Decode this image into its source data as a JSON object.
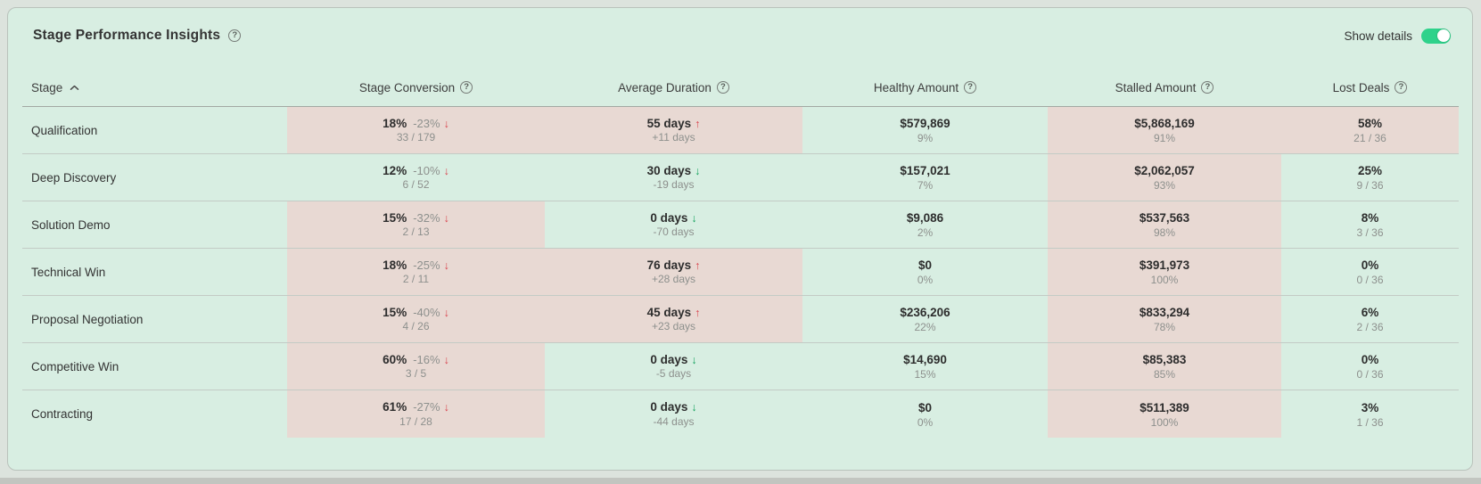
{
  "colors": {
    "card_background": "#d8eee2",
    "highlight_pink": "#e8d9d3",
    "outer_background": "#dce3dd",
    "toggle_green": "#2ed28b",
    "negative_red": "#d9434e",
    "positive_green": "#17a35f"
  },
  "icons": {
    "help_glyph": "?"
  },
  "header": {
    "title": "Stage Performance Insights",
    "show_details_label": "Show details",
    "show_details_on": true
  },
  "table": {
    "columns": [
      {
        "key": "stage",
        "label": "Stage",
        "sorted": "asc",
        "help": false
      },
      {
        "key": "conversion",
        "label": "Stage Conversion",
        "help": true
      },
      {
        "key": "duration",
        "label": "Average Duration",
        "help": true
      },
      {
        "key": "healthy",
        "label": "Healthy Amount",
        "help": true
      },
      {
        "key": "stalled",
        "label": "Stalled Amount",
        "help": true
      },
      {
        "key": "lost",
        "label": "Lost Deals",
        "help": true
      }
    ],
    "rows": [
      {
        "stage": "Qualification",
        "conversion": {
          "value": "18%",
          "delta": "-23%",
          "arrow": "↓",
          "tone": "red",
          "sub": "33 / 179",
          "highlight": true
        },
        "duration": {
          "value": "55 days",
          "arrow": "↑",
          "tone": "red",
          "sub": "+11 days",
          "highlight": true
        },
        "healthy": {
          "value": "$579,869",
          "sub": "9%",
          "highlight": false
        },
        "stalled": {
          "value": "$5,868,169",
          "sub": "91%",
          "highlight": true
        },
        "lost": {
          "value": "58%",
          "sub": "21 / 36",
          "highlight": true
        }
      },
      {
        "stage": "Deep Discovery",
        "conversion": {
          "value": "12%",
          "delta": "-10%",
          "arrow": "↓",
          "tone": "red",
          "sub": "6 / 52",
          "highlight": false
        },
        "duration": {
          "value": "30 days",
          "arrow": "↓",
          "tone": "green",
          "sub": "-19 days",
          "highlight": false
        },
        "healthy": {
          "value": "$157,021",
          "sub": "7%",
          "highlight": false
        },
        "stalled": {
          "value": "$2,062,057",
          "sub": "93%",
          "highlight": true
        },
        "lost": {
          "value": "25%",
          "sub": "9 / 36",
          "highlight": false
        }
      },
      {
        "stage": "Solution Demo",
        "conversion": {
          "value": "15%",
          "delta": "-32%",
          "arrow": "↓",
          "tone": "red",
          "sub": "2 / 13",
          "highlight": true
        },
        "duration": {
          "value": "0 days",
          "arrow": "↓",
          "tone": "green",
          "sub": "-70 days",
          "highlight": false
        },
        "healthy": {
          "value": "$9,086",
          "sub": "2%",
          "highlight": false
        },
        "stalled": {
          "value": "$537,563",
          "sub": "98%",
          "highlight": true
        },
        "lost": {
          "value": "8%",
          "sub": "3 / 36",
          "highlight": false
        }
      },
      {
        "stage": "Technical Win",
        "conversion": {
          "value": "18%",
          "delta": "-25%",
          "arrow": "↓",
          "tone": "red",
          "sub": "2 / 11",
          "highlight": true
        },
        "duration": {
          "value": "76 days",
          "arrow": "↑",
          "tone": "red",
          "sub": "+28 days",
          "highlight": true
        },
        "healthy": {
          "value": "$0",
          "sub": "0%",
          "highlight": false
        },
        "stalled": {
          "value": "$391,973",
          "sub": "100%",
          "highlight": true
        },
        "lost": {
          "value": "0%",
          "sub": "0 / 36",
          "highlight": false
        }
      },
      {
        "stage": "Proposal Negotiation",
        "conversion": {
          "value": "15%",
          "delta": "-40%",
          "arrow": "↓",
          "tone": "red",
          "sub": "4 / 26",
          "highlight": true
        },
        "duration": {
          "value": "45 days",
          "arrow": "↑",
          "tone": "red",
          "sub": "+23 days",
          "highlight": true
        },
        "healthy": {
          "value": "$236,206",
          "sub": "22%",
          "highlight": false
        },
        "stalled": {
          "value": "$833,294",
          "sub": "78%",
          "highlight": true
        },
        "lost": {
          "value": "6%",
          "sub": "2 / 36",
          "highlight": false
        }
      },
      {
        "stage": "Competitive Win",
        "conversion": {
          "value": "60%",
          "delta": "-16%",
          "arrow": "↓",
          "tone": "red",
          "sub": "3 / 5",
          "highlight": true
        },
        "duration": {
          "value": "0 days",
          "arrow": "↓",
          "tone": "green",
          "sub": "-5 days",
          "highlight": false
        },
        "healthy": {
          "value": "$14,690",
          "sub": "15%",
          "highlight": false
        },
        "stalled": {
          "value": "$85,383",
          "sub": "85%",
          "highlight": true
        },
        "lost": {
          "value": "0%",
          "sub": "0 / 36",
          "highlight": false
        }
      },
      {
        "stage": "Contracting",
        "conversion": {
          "value": "61%",
          "delta": "-27%",
          "arrow": "↓",
          "tone": "red",
          "sub": "17 / 28",
          "highlight": true
        },
        "duration": {
          "value": "0 days",
          "arrow": "↓",
          "tone": "green",
          "sub": "-44 days",
          "highlight": false
        },
        "healthy": {
          "value": "$0",
          "sub": "0%",
          "highlight": false
        },
        "stalled": {
          "value": "$511,389",
          "sub": "100%",
          "highlight": true
        },
        "lost": {
          "value": "3%",
          "sub": "1 / 36",
          "highlight": false
        }
      }
    ]
  }
}
